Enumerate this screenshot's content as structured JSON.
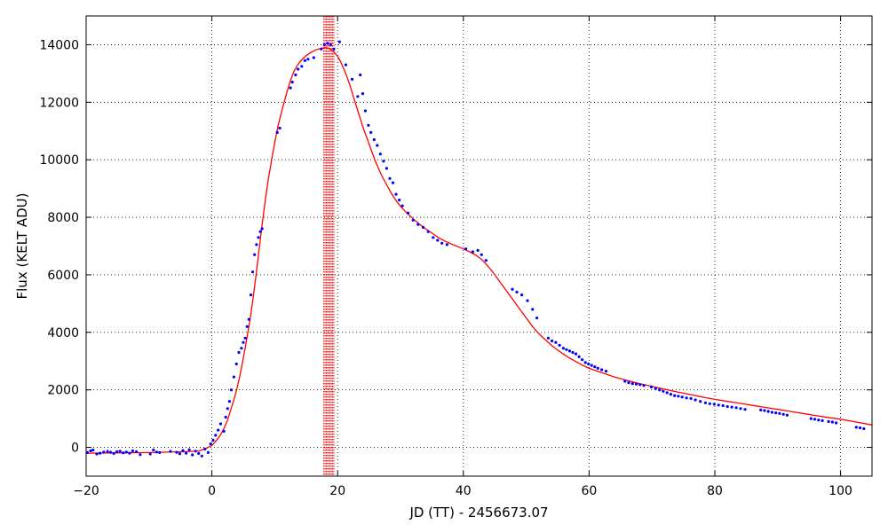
{
  "chart_data": {
    "type": "scatter",
    "title": "",
    "xlabel": "JD (TT) - 2456673.07",
    "ylabel": "Flux (KELT ADU)",
    "xlim": [
      -20,
      105
    ],
    "ylim": [
      -1000,
      15000
    ],
    "xticks": [
      -20,
      0,
      20,
      40,
      60,
      80,
      100
    ],
    "yticks": [
      0,
      2000,
      4000,
      6000,
      8000,
      10000,
      12000,
      14000
    ],
    "grid": true,
    "grid_style": "dotted",
    "legend": "none",
    "colors": {
      "points": "#0000ff",
      "model": "#ff0000",
      "marker_lines": "#ff0000"
    },
    "vertical_markers": {
      "style": "dotted",
      "x": [
        17.8,
        18.0,
        18.2,
        18.4,
        18.6,
        18.8,
        19.0,
        19.2,
        19.4
      ]
    },
    "series": [
      {
        "kind": "points",
        "x": [
          -19.8,
          -19.3,
          -18.9,
          -18.3,
          -17.8,
          -17.2,
          -16.6,
          -16.1,
          -15.6,
          -15.1,
          -14.6,
          -14.1,
          -13.6,
          -13.1,
          -12.6,
          -12.0,
          -11.4,
          -9.8,
          -9.3,
          -8.8,
          -8.3,
          -6.6,
          -5.6,
          -5.1,
          -4.6,
          -4.1,
          -3.6,
          -3.1,
          -2.6,
          -2.1,
          -1.6,
          -1.1,
          -0.6,
          -0.2,
          0.2,
          0.6,
          1.0,
          1.4,
          1.9,
          2.2,
          2.5,
          2.8,
          3.1,
          3.5,
          3.9,
          4.3,
          4.7,
          5.0,
          5.3,
          5.6,
          5.9,
          6.2,
          6.5,
          6.8,
          7.1,
          7.4,
          7.7,
          8.0,
          10.4,
          10.8,
          12.5,
          12.8,
          13.3,
          13.7,
          14.3,
          14.8,
          15.3,
          16.2,
          17.4,
          17.9,
          18.4,
          18.9,
          19.4,
          20.3,
          21.3,
          22.3,
          23.2,
          23.6,
          24.0,
          24.4,
          24.9,
          25.3,
          25.8,
          26.3,
          26.8,
          27.3,
          27.8,
          28.3,
          28.8,
          29.3,
          29.8,
          30.3,
          31.2,
          32.0,
          32.8,
          33.6,
          34.4,
          35.2,
          35.9,
          36.6,
          37.4,
          40.4,
          41.5,
          42.3,
          42.9,
          43.6,
          47.8,
          48.5,
          49.3,
          50.2,
          51.0,
          51.7,
          53.5,
          54.1,
          54.7,
          55.3,
          55.9,
          56.4,
          56.9,
          57.4,
          57.9,
          58.4,
          58.9,
          59.4,
          59.9,
          60.4,
          60.9,
          61.4,
          62.0,
          62.7,
          65.7,
          66.3,
          66.9,
          67.5,
          68.1,
          68.7,
          69.9,
          70.6,
          71.2,
          71.8,
          72.4,
          73.0,
          73.6,
          74.2,
          74.8,
          75.5,
          76.2,
          76.9,
          77.7,
          78.5,
          79.2,
          79.9,
          80.6,
          81.3,
          82.0,
          82.7,
          83.4,
          84.1,
          84.8,
          87.3,
          87.9,
          88.5,
          89.1,
          89.7,
          90.3,
          90.9,
          91.5,
          95.3,
          95.9,
          96.5,
          97.1,
          98.1,
          98.7,
          99.3,
          102.5,
          103.1,
          103.7
        ],
        "y": [
          -180,
          -120,
          -90,
          -230,
          -200,
          -160,
          -140,
          -170,
          -210,
          -150,
          -130,
          -190,
          -160,
          -200,
          -120,
          -150,
          -250,
          -230,
          -90,
          -160,
          -180,
          -140,
          -170,
          -220,
          -110,
          -200,
          -80,
          -260,
          -130,
          -210,
          -300,
          -60,
          -180,
          120,
          250,
          420,
          600,
          820,
          560,
          1050,
          1350,
          1600,
          2000,
          2450,
          2900,
          3300,
          3450,
          3650,
          3800,
          4200,
          4450,
          5300,
          6100,
          6700,
          7050,
          7300,
          7500,
          7600,
          10950,
          11100,
          12500,
          12700,
          12950,
          13150,
          13250,
          13450,
          13500,
          13550,
          13850,
          14000,
          14050,
          14000,
          13850,
          14100,
          13300,
          12800,
          12200,
          12950,
          12300,
          11700,
          11200,
          10950,
          10700,
          10500,
          10200,
          9950,
          9700,
          9350,
          9200,
          8800,
          8600,
          8400,
          8150,
          7900,
          7750,
          7650,
          7500,
          7300,
          7200,
          7100,
          7050,
          6900,
          6800,
          6850,
          6700,
          6500,
          5500,
          5400,
          5300,
          5100,
          4800,
          4500,
          3800,
          3700,
          3650,
          3550,
          3450,
          3400,
          3350,
          3300,
          3250,
          3150,
          3050,
          2950,
          2900,
          2850,
          2800,
          2750,
          2700,
          2650,
          2300,
          2250,
          2220,
          2200,
          2180,
          2150,
          2100,
          2050,
          2000,
          1950,
          1900,
          1850,
          1800,
          1780,
          1750,
          1720,
          1700,
          1650,
          1600,
          1550,
          1520,
          1500,
          1470,
          1450,
          1420,
          1400,
          1380,
          1350,
          1320,
          1300,
          1280,
          1250,
          1220,
          1200,
          1180,
          1150,
          1120,
          1000,
          980,
          950,
          930,
          900,
          880,
          850,
          700,
          680,
          650
        ]
      },
      {
        "kind": "model",
        "x": [
          -20,
          -10,
          -4,
          -2,
          -1,
          0,
          0.5,
          1,
          1.5,
          2,
          2.5,
          3,
          3.5,
          4,
          4.5,
          5,
          5.5,
          6,
          6.5,
          7,
          7.5,
          8,
          8.5,
          9,
          9.5,
          10,
          10.5,
          11,
          11.5,
          12,
          12.5,
          13,
          13.5,
          14,
          14.5,
          15,
          15.5,
          16,
          16.5,
          17,
          17.5,
          18,
          18.5,
          19,
          19.5,
          20,
          20.5,
          21,
          21.5,
          22,
          22.5,
          23,
          23.5,
          24,
          24.5,
          25,
          25.5,
          26,
          26.5,
          27,
          27.5,
          28,
          28.5,
          29,
          29.5,
          30,
          31,
          32,
          33,
          34,
          35,
          36,
          37,
          38,
          39,
          40,
          41,
          42,
          43,
          44,
          45,
          46,
          47,
          48,
          49,
          50,
          51,
          52,
          53,
          54,
          55,
          56,
          57,
          58,
          59,
          60,
          62,
          64,
          66,
          68,
          70,
          72,
          74,
          76,
          78,
          80,
          82,
          84,
          86,
          88,
          90,
          92,
          94,
          96,
          98,
          100,
          102,
          105
        ],
        "y": [
          -200,
          -180,
          -150,
          -120,
          -40,
          70,
          180,
          320,
          480,
          700,
          950,
          1300,
          1650,
          2050,
          2550,
          3100,
          3700,
          4350,
          5100,
          5950,
          6850,
          7750,
          8600,
          9350,
          10000,
          10600,
          11150,
          11600,
          12000,
          12400,
          12750,
          13050,
          13250,
          13400,
          13520,
          13620,
          13700,
          13760,
          13820,
          13850,
          13880,
          13900,
          13880,
          13820,
          13730,
          13600,
          13400,
          13150,
          12880,
          12560,
          12200,
          11850,
          11500,
          11150,
          10850,
          10550,
          10250,
          9950,
          9700,
          9450,
          9250,
          9050,
          8850,
          8680,
          8520,
          8380,
          8150,
          7950,
          7760,
          7600,
          7450,
          7300,
          7180,
          7080,
          6990,
          6900,
          6800,
          6680,
          6520,
          6280,
          6000,
          5700,
          5400,
          5100,
          4800,
          4500,
          4200,
          3950,
          3750,
          3550,
          3380,
          3230,
          3090,
          2970,
          2850,
          2750,
          2600,
          2450,
          2330,
          2220,
          2120,
          2020,
          1930,
          1840,
          1750,
          1670,
          1600,
          1530,
          1460,
          1390,
          1320,
          1250,
          1180,
          1110,
          1040,
          980,
          900,
          780
        ]
      }
    ]
  }
}
